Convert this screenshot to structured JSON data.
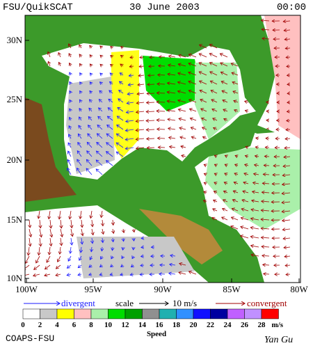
{
  "header": {
    "source": "FSU/QuikSCAT",
    "date": "30 June 2003",
    "time": "00:00"
  },
  "map": {
    "lat_labels": [
      "30N",
      "25N",
      "20N",
      "15N",
      "10N"
    ],
    "lon_labels": [
      "100W",
      "95W",
      "90W",
      "85W",
      "80W"
    ]
  },
  "legend": {
    "divergent": "divergent",
    "scale": "scale",
    "scale_value": "10 m/s",
    "convergent": "convergent"
  },
  "colorbar": {
    "labels": [
      "0",
      "2",
      "4",
      "6",
      "8",
      "10",
      "12",
      "14",
      "16",
      "18",
      "20",
      "22",
      "24",
      "26",
      "28"
    ],
    "unit": "m/s",
    "title": "Speed"
  },
  "footer": {
    "credit": "COAPS-FSU",
    "author": "Yan Gu"
  }
}
